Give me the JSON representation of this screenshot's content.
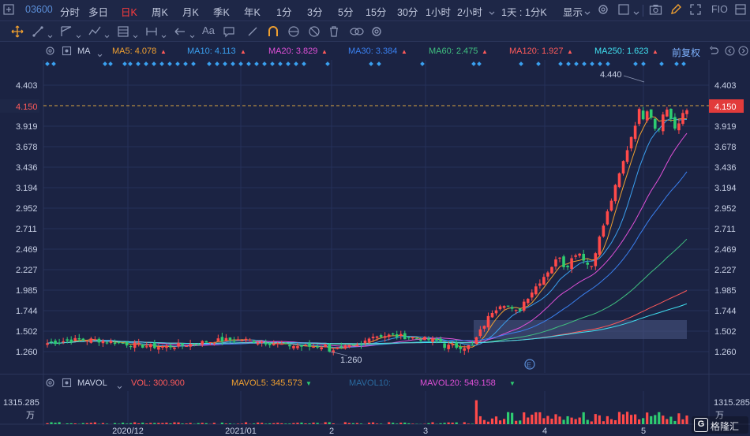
{
  "toolbar": {
    "code": "03600",
    "periods": [
      "分时",
      "多日",
      "日K",
      "周K",
      "月K",
      "季K",
      "年K",
      "1分",
      "3分",
      "5分",
      "15分",
      "30分",
      "1小时",
      "2小时"
    ],
    "active_period": "日K",
    "period_select": "1天 : 1分K",
    "display_label": "显示",
    "fio_label": "FIO"
  },
  "drawbar": {
    "tools": [
      "move-icon",
      "line-tool-icon",
      "ray-tool-icon",
      "polyline-tool-icon",
      "fibonacci-tool-icon",
      "range-tool-icon",
      "arrow-tool-icon",
      "text-tool-icon",
      "note-tool-icon",
      "pen-tool-icon",
      "magnet-icon",
      "eye-icon",
      "hide-icon",
      "trash-icon",
      "link-icon",
      "settings-icon"
    ]
  },
  "ma_header": {
    "indicator": "MA",
    "items": [
      {
        "label": "MA5: 4.078",
        "color": "#f0a030"
      },
      {
        "label": "MA10: 4.113",
        "color": "#3aa0f0"
      },
      {
        "label": "MA20: 3.829",
        "color": "#e050d8"
      },
      {
        "label": "MA30: 3.384",
        "color": "#3a80f0"
      },
      {
        "label": "MA60: 2.475",
        "color": "#40c080"
      },
      {
        "label": "MA120: 1.927",
        "color": "#ff5a5a"
      },
      {
        "label": "MA250: 1.623",
        "color": "#40e0f0"
      }
    ],
    "adjust_label": "前复权"
  },
  "price_axis": {
    "ticks": [
      "4.403",
      "4.150",
      "3.919",
      "3.678",
      "3.436",
      "3.194",
      "2.952",
      "2.711",
      "2.469",
      "2.227",
      "1.985",
      "1.744",
      "1.502",
      "1.260"
    ],
    "current_price": "4.150",
    "high_label": "4.440",
    "low_label": "1.260",
    "event_marker": "E"
  },
  "volume_header": {
    "indicator": "MAVOL",
    "items": [
      {
        "label": "VOL: 300.900",
        "color": "#ff5a5a"
      },
      {
        "label": "MAVOL5: 345.573",
        "color": "#f0a030"
      },
      {
        "label": "MAVOL10:",
        "color": "#2a6aa0"
      },
      {
        "label": "MAVOL20: 549.158",
        "color": "#e050d8"
      }
    ],
    "max_label": "1315.285",
    "unit_label": "万"
  },
  "time_axis": {
    "labels": [
      "2020/12",
      "2021/01",
      "2",
      "3",
      "4",
      "5"
    ]
  },
  "watermark": {
    "mark": "G",
    "text": "格隆汇"
  },
  "colors": {
    "up": "#ff4a4a",
    "down": "#2ecc71",
    "background": "#1b2343",
    "accent": "#ff3c3c",
    "current_line": "#d9a441"
  }
}
